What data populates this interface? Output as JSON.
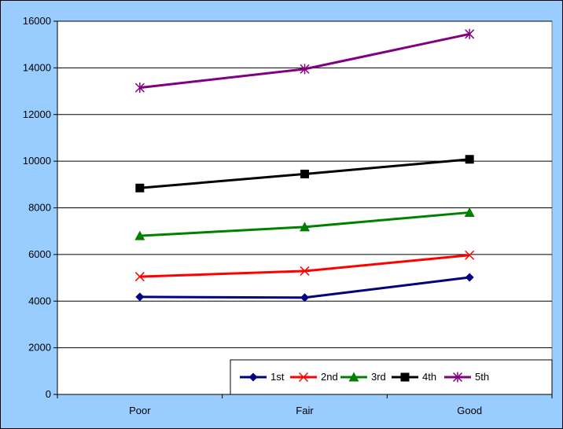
{
  "chart_data": {
    "type": "line",
    "categories": [
      "Poor",
      "Fair",
      "Good"
    ],
    "ylim": [
      0,
      16000
    ],
    "yticks": [
      0,
      2000,
      4000,
      6000,
      8000,
      10000,
      12000,
      14000,
      16000
    ],
    "grid": true,
    "legend_position": "bottom-right",
    "series": [
      {
        "name": "1st",
        "values": [
          4180,
          4150,
          5020
        ],
        "color": "#000080",
        "marker": "diamond"
      },
      {
        "name": "2nd",
        "values": [
          5050,
          5290,
          5970
        ],
        "color": "#ff0000",
        "marker": "x"
      },
      {
        "name": "3rd",
        "values": [
          6800,
          7180,
          7800
        ],
        "color": "#008000",
        "marker": "triangle"
      },
      {
        "name": "4th",
        "values": [
          8850,
          9450,
          10080
        ],
        "color": "#000000",
        "marker": "square"
      },
      {
        "name": "5th",
        "values": [
          13150,
          13950,
          15450
        ],
        "color": "#800080",
        "marker": "asterisk"
      }
    ]
  },
  "colors": {
    "chart_area": "#99ccff",
    "plot_area": "#ffffff",
    "gridline": "#000000"
  }
}
